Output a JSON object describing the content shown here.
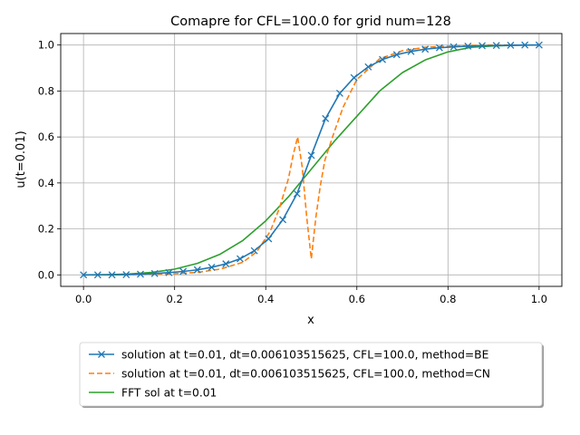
{
  "chart_data": {
    "type": "line",
    "title": "Comapre for CFL=100.0 for grid num=128",
    "xlabel": "x",
    "ylabel": "u(t=0.01)",
    "xlim": [
      -0.05,
      1.05
    ],
    "ylim": [
      -0.05,
      1.05
    ],
    "xticks": [
      0.0,
      0.2,
      0.4,
      0.6,
      0.8,
      1.0
    ],
    "xtick_labels": [
      "0.0",
      "0.2",
      "0.4",
      "0.6",
      "0.8",
      "1.0"
    ],
    "yticks": [
      0.0,
      0.2,
      0.4,
      0.6,
      0.8,
      1.0
    ],
    "ytick_labels": [
      "0.0",
      "0.2",
      "0.4",
      "0.6",
      "0.8",
      "1.0"
    ],
    "grid": true,
    "legend_position": "below plot",
    "series": [
      {
        "name": "solution at t=0.01, dt=0.006103515625, CFL=100.0, method=BE",
        "color": "#1f77b4",
        "style": "solid",
        "marker": "x",
        "x": [
          0.0,
          0.03125,
          0.0625,
          0.09375,
          0.125,
          0.15625,
          0.1875,
          0.21875,
          0.25,
          0.28125,
          0.3125,
          0.34375,
          0.375,
          0.40625,
          0.4375,
          0.46875,
          0.5,
          0.53125,
          0.5625,
          0.59375,
          0.625,
          0.65625,
          0.6875,
          0.71875,
          0.75,
          0.78125,
          0.8125,
          0.84375,
          0.875,
          0.90625,
          0.9375,
          0.96875,
          1.0
        ],
        "y": [
          0.0,
          0.0,
          0.0,
          0.001,
          0.003,
          0.006,
          0.01,
          0.015,
          0.022,
          0.033,
          0.048,
          0.07,
          0.105,
          0.157,
          0.24,
          0.353,
          0.52,
          0.68,
          0.79,
          0.858,
          0.905,
          0.937,
          0.958,
          0.972,
          0.982,
          0.988,
          0.992,
          0.995,
          0.997,
          0.998,
          0.999,
          1.0,
          1.0
        ]
      },
      {
        "name": "solution at t=0.01, dt=0.006103515625, CFL=100.0, method=CN",
        "color": "#ff7f0e",
        "style": "dashed",
        "marker": "",
        "x": [
          0.0,
          0.1,
          0.2,
          0.25,
          0.3,
          0.35,
          0.38,
          0.41,
          0.43,
          0.45,
          0.46,
          0.47,
          0.48,
          0.49,
          0.5,
          0.51,
          0.52,
          0.53,
          0.55,
          0.57,
          0.6,
          0.65,
          0.7,
          0.75,
          0.8,
          0.85,
          0.9,
          1.0
        ],
        "y": [
          0.0,
          0.001,
          0.005,
          0.011,
          0.025,
          0.055,
          0.1,
          0.19,
          0.29,
          0.42,
          0.52,
          0.6,
          0.47,
          0.25,
          0.07,
          0.25,
          0.39,
          0.5,
          0.62,
          0.73,
          0.85,
          0.94,
          0.975,
          0.99,
          0.995,
          0.998,
          1.0,
          1.0
        ]
      },
      {
        "name": "FFT sol at t=0.01",
        "color": "#2ca02c",
        "style": "solid",
        "marker": "",
        "x": [
          0.0,
          0.05,
          0.1,
          0.15,
          0.2,
          0.25,
          0.3,
          0.35,
          0.4,
          0.45,
          0.5,
          0.55,
          0.6,
          0.65,
          0.7,
          0.75,
          0.8,
          0.85,
          0.9,
          0.95,
          1.0
        ],
        "y": [
          0.0,
          0.001,
          0.004,
          0.011,
          0.025,
          0.05,
          0.09,
          0.15,
          0.235,
          0.34,
          0.46,
          0.58,
          0.69,
          0.8,
          0.88,
          0.935,
          0.97,
          0.99,
          0.996,
          0.999,
          1.0
        ]
      }
    ]
  }
}
